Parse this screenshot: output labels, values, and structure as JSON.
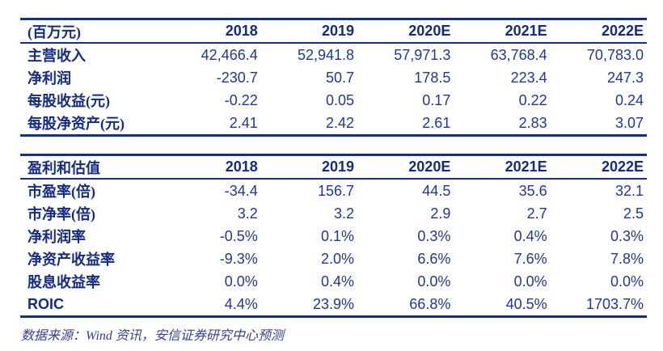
{
  "colors": {
    "rule_navy": "#14318c",
    "label_navy": "#122b88",
    "number_blue": "#1e379e",
    "footer_blue": "#3340a0"
  },
  "table1": {
    "unit_header": "(百万元)",
    "columns": [
      "2018",
      "2019",
      "2020E",
      "2021E",
      "2022E"
    ],
    "rows": [
      {
        "label": "主营收入",
        "values": [
          "42,466.4",
          "52,941.8",
          "57,971.3",
          "63,768.4",
          "70,783.0"
        ]
      },
      {
        "label": "净利润",
        "values": [
          "-230.7",
          "50.7",
          "178.5",
          "223.4",
          "247.3"
        ]
      },
      {
        "label": "每股收益(元)",
        "values": [
          "-0.22",
          "0.05",
          "0.17",
          "0.22",
          "0.24"
        ]
      },
      {
        "label": "每股净资产(元)",
        "values": [
          "2.41",
          "2.42",
          "2.61",
          "2.83",
          "3.07"
        ]
      }
    ]
  },
  "table2": {
    "header": "盈利和估值",
    "columns": [
      "2018",
      "2019",
      "2020E",
      "2021E",
      "2022E"
    ],
    "rows": [
      {
        "label": "市盈率(倍)",
        "values": [
          "-34.4",
          "156.7",
          "44.5",
          "35.6",
          "32.1"
        ]
      },
      {
        "label": "市净率(倍)",
        "values": [
          "3.2",
          "3.2",
          "2.9",
          "2.7",
          "2.5"
        ]
      },
      {
        "label": "净利润率",
        "values": [
          "-0.5%",
          "0.1%",
          "0.3%",
          "0.4%",
          "0.3%"
        ]
      },
      {
        "label": "净资产收益率",
        "values": [
          "-9.3%",
          "2.0%",
          "6.6%",
          "7.6%",
          "7.8%"
        ]
      },
      {
        "label": "股息收益率",
        "values": [
          "0.0%",
          "0.4%",
          "0.0%",
          "0.0%",
          "0.0%"
        ]
      },
      {
        "label": "ROIC",
        "values": [
          "4.4%",
          "23.9%",
          "66.8%",
          "40.5%",
          "1703.7%"
        ]
      }
    ]
  },
  "footer": {
    "source": "数据来源：Wind 资讯，安信证券研究中心预测"
  }
}
